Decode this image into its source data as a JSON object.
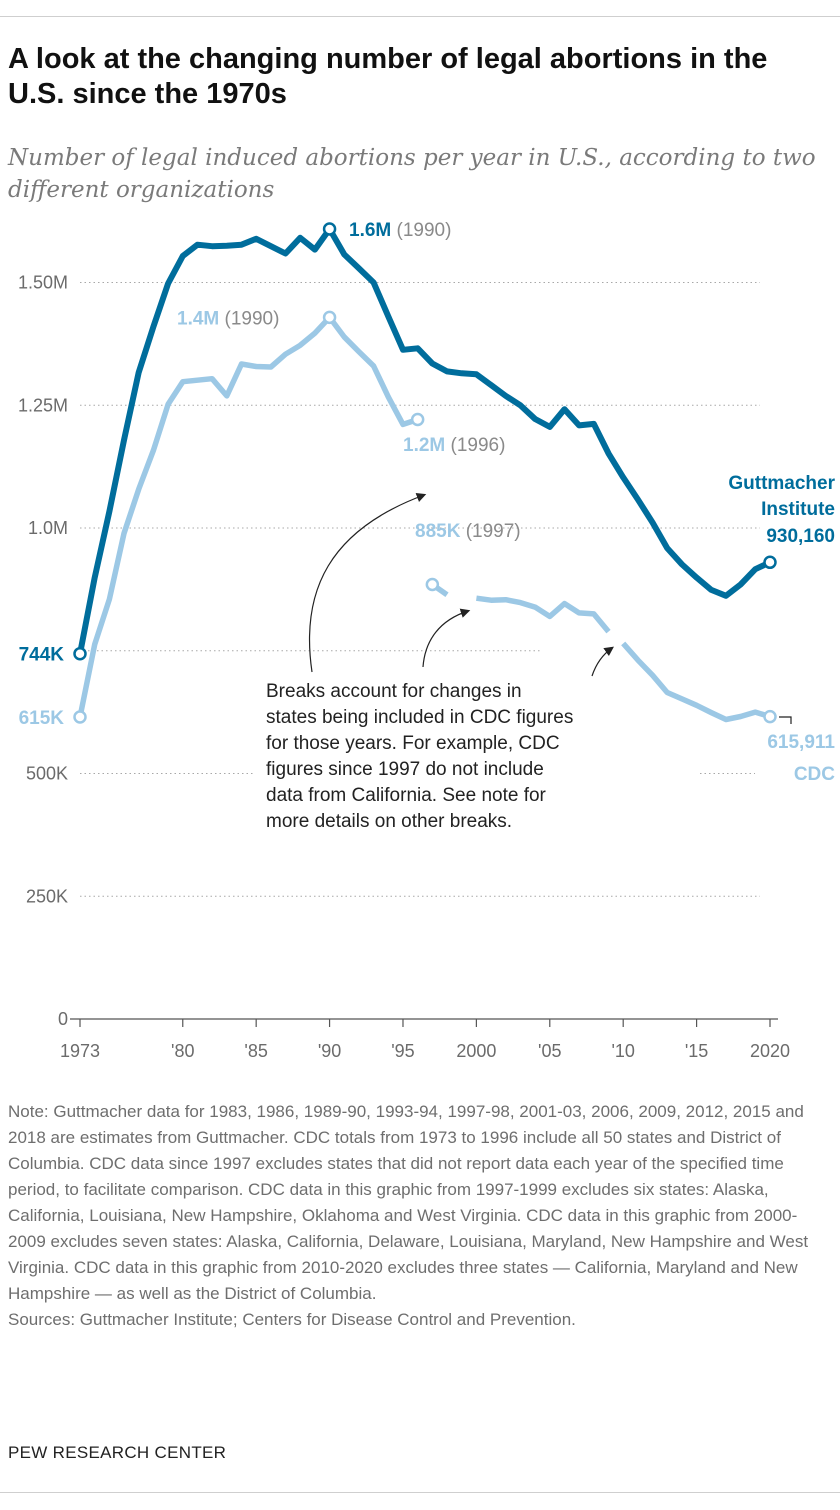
{
  "title": "A look at the changing number of legal abortions in the U.S. since the 1970s",
  "subtitle": "Number of legal induced abortions per year in U.S., according to two different organizations",
  "note": "Note: Guttmacher data for 1983, 1986, 1989-90, 1993-94, 1997-98, 2001-03, 2006, 2009, 2012, 2015 and 2018 are estimates from Guttmacher. CDC totals from 1973 to 1996 include all 50 states and District of Columbia. CDC data since 1997 excludes states that did not report data each year of the specified time period, to facilitate comparison. CDC data in this graphic from 1997-1999 excludes six states: Alaska, California, Louisiana, New Hampshire, Oklahoma and West Virginia. CDC data in this graphic from 2000-2009 excludes seven states: Alaska, California, Delaware, Louisiana, Maryland, New Hampshire and West Virginia. CDC data in this graphic from 2010-2020 excludes three states — California, Maryland and New Hampshire — as well as the District of Columbia.",
  "sources": "Sources: Guttmacher Institute; Centers for Disease Control and Prevention.",
  "footer": "PEW RESEARCH CENTER",
  "colors": {
    "guttmacher": "#006d9c",
    "cdc": "#9cc8e5",
    "annotation": "#222222"
  },
  "chart_data": {
    "type": "line",
    "xlim": [
      1973,
      2020
    ],
    "ylim": [
      0,
      1650000
    ],
    "x_ticks": [
      {
        "value": 1973,
        "label": "1973"
      },
      {
        "value": 1980,
        "label": "'80"
      },
      {
        "value": 1985,
        "label": "'85"
      },
      {
        "value": 1990,
        "label": "'90"
      },
      {
        "value": 1995,
        "label": "'95"
      },
      {
        "value": 2000,
        "label": "2000"
      },
      {
        "value": 2005,
        "label": "'05"
      },
      {
        "value": 2010,
        "label": "'10"
      },
      {
        "value": 2015,
        "label": "'15"
      },
      {
        "value": 2020,
        "label": "2020"
      }
    ],
    "y_ticks": [
      {
        "value": 0,
        "label": "0"
      },
      {
        "value": 250000,
        "label": "250K"
      },
      {
        "value": 500000,
        "label": "500K"
      },
      {
        "value": 1000000,
        "label": "1.0M"
      },
      {
        "value": 1250000,
        "label": "1.25M"
      },
      {
        "value": 1500000,
        "label": "1.50M"
      }
    ],
    "grid": "horizontal dotted",
    "series": [
      {
        "name": "Guttmacher Institute",
        "color": "#006d9c",
        "segments": [
          [
            [
              1973,
              744000
            ],
            [
              1974,
              899000
            ],
            [
              1975,
              1034000
            ],
            [
              1976,
              1179000
            ],
            [
              1977,
              1317000
            ],
            [
              1978,
              1410000
            ],
            [
              1979,
              1498000
            ],
            [
              1980,
              1554000
            ],
            [
              1981,
              1577000
            ],
            [
              1982,
              1574000
            ],
            [
              1983,
              1575000
            ],
            [
              1984,
              1577000
            ],
            [
              1985,
              1589000
            ],
            [
              1986,
              1574000
            ],
            [
              1987,
              1559000
            ],
            [
              1988,
              1591000
            ],
            [
              1989,
              1567000
            ],
            [
              1990,
              1609000
            ],
            [
              1991,
              1557000
            ],
            [
              1992,
              1529000
            ],
            [
              1993,
              1500000
            ],
            [
              1994,
              1431000
            ],
            [
              1995,
              1363000
            ],
            [
              1996,
              1366000
            ],
            [
              1997,
              1335000
            ],
            [
              1998,
              1319000
            ],
            [
              1999,
              1315000
            ],
            [
              2000,
              1313000
            ],
            [
              2001,
              1291000
            ],
            [
              2002,
              1269000
            ],
            [
              2003,
              1250000
            ],
            [
              2004,
              1222000
            ],
            [
              2005,
              1206000
            ],
            [
              2006,
              1242000
            ],
            [
              2007,
              1209000
            ],
            [
              2008,
              1212000
            ],
            [
              2009,
              1152000
            ],
            [
              2010,
              1103000
            ],
            [
              2011,
              1058000
            ],
            [
              2012,
              1011000
            ],
            [
              2013,
              959000
            ],
            [
              2014,
              926000
            ],
            [
              2015,
              899000
            ],
            [
              2016,
              874000
            ],
            [
              2017,
              862000
            ],
            [
              2018,
              885000
            ],
            [
              2019,
              916000
            ],
            [
              2020,
              930160
            ]
          ]
        ]
      },
      {
        "name": "CDC",
        "color": "#9cc8e5",
        "segments": [
          [
            [
              1973,
              615000
            ],
            [
              1974,
              763000
            ],
            [
              1975,
              855000
            ],
            [
              1976,
              989000
            ],
            [
              1977,
              1079000
            ],
            [
              1978,
              1158000
            ],
            [
              1979,
              1252000
            ],
            [
              1980,
              1298000
            ],
            [
              1981,
              1301000
            ],
            [
              1982,
              1304000
            ],
            [
              1983,
              1269000
            ],
            [
              1984,
              1334000
            ],
            [
              1985,
              1329000
            ],
            [
              1986,
              1328000
            ],
            [
              1987,
              1354000
            ],
            [
              1988,
              1372000
            ],
            [
              1989,
              1397000
            ],
            [
              1990,
              1429000
            ],
            [
              1991,
              1389000
            ],
            [
              1992,
              1359000
            ],
            [
              1993,
              1330000
            ],
            [
              1994,
              1267000
            ],
            [
              1995,
              1211000
            ],
            [
              1996,
              1221000
            ]
          ],
          [
            [
              1997,
              885000
            ],
            [
              1998,
              864000
            ]
          ],
          [
            [
              2000,
              857000
            ],
            [
              2001,
              853000
            ],
            [
              2002,
              854000
            ],
            [
              2003,
              848000
            ],
            [
              2004,
              839000
            ],
            [
              2005,
              820000
            ],
            [
              2006,
              846000
            ],
            [
              2007,
              827000
            ],
            [
              2008,
              825000
            ],
            [
              2009,
              789000
            ]
          ],
          [
            [
              2010,
              765000
            ],
            [
              2011,
              731000
            ],
            [
              2012,
              700000
            ],
            [
              2013,
              665000
            ],
            [
              2014,
              652000
            ],
            [
              2015,
              639000
            ],
            [
              2016,
              624000
            ],
            [
              2017,
              610000
            ],
            [
              2018,
              616000
            ],
            [
              2019,
              625000
            ],
            [
              2020,
              615911
            ]
          ]
        ]
      }
    ],
    "point_labels": [
      {
        "id": "g1973",
        "x": 1973,
        "y": 744000,
        "series": 0,
        "value": "744K",
        "anchor": "left"
      },
      {
        "id": "c1973",
        "x": 1973,
        "y": 615000,
        "series": 1,
        "value": "615K",
        "anchor": "left"
      },
      {
        "id": "g1990",
        "x": 1990,
        "y": 1609000,
        "series": 0,
        "value": "1.6M",
        "year": "(1990)",
        "anchor": "right"
      },
      {
        "id": "c1990",
        "x": 1990,
        "y": 1429000,
        "series": 1,
        "value": "1.4M",
        "year": "(1990)",
        "anchor": "left"
      },
      {
        "id": "c1996",
        "x": 1996,
        "y": 1221000,
        "series": 1,
        "value": "1.2M",
        "year": "(1996)",
        "anchor": "below"
      },
      {
        "id": "c1997",
        "x": 1997,
        "y": 885000,
        "series": 1,
        "value": "885K",
        "year": "(1997)",
        "anchor": "above"
      },
      {
        "id": "g2020",
        "x": 2020,
        "y": 930160,
        "series": 0,
        "value": "930,160",
        "name_lines": [
          "Guttmacher",
          "Institute"
        ],
        "anchor": "above"
      },
      {
        "id": "c2020",
        "x": 2020,
        "y": 615911,
        "series": 1,
        "value": "615,911",
        "name_lines": [
          "CDC"
        ],
        "anchor": "below"
      }
    ],
    "annotation": {
      "lines": [
        "Breaks account for changes in",
        "states being included in CDC figures",
        "for those years. For example, CDC",
        "figures since 1997 do not include",
        "data from California. See note for",
        "more details on other breaks."
      ]
    }
  }
}
